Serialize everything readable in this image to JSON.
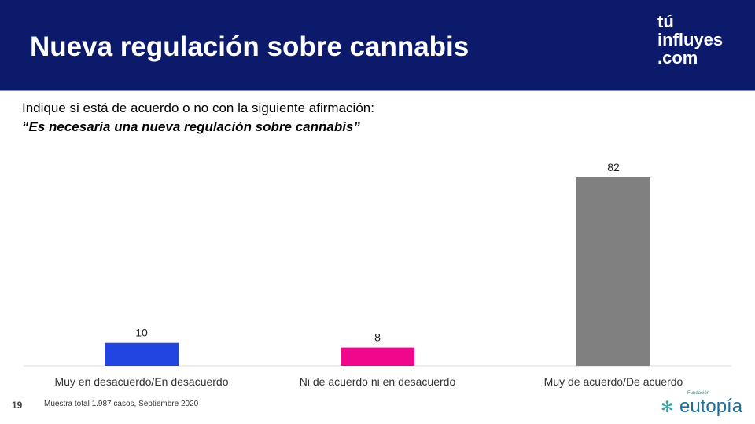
{
  "header": {
    "title": "Nueva regulación sobre cannabis",
    "logo_lines": [
      "tú",
      "influyes",
      ".com"
    ]
  },
  "question": {
    "line1": "Indique si está de acuerdo o no con la siguiente afirmación:",
    "line2": "“Es necesaria una nueva regulación sobre cannabis”"
  },
  "chart_data": {
    "type": "bar",
    "categories": [
      "Muy en desacuerdo/En desacuerdo",
      "Ni de acuerdo ni en desacuerdo",
      "Muy de acuerdo/De acuerdo"
    ],
    "values": [
      10,
      8,
      82
    ],
    "colors": [
      "#2244e0",
      "#f0078c",
      "#808080"
    ],
    "ylim": [
      0,
      82
    ],
    "grid": false
  },
  "footer": {
    "page": "19",
    "note": "Muestra total 1.987 casos, Septiembre 2020",
    "brand_small": "Fundación",
    "brand": "eutopía"
  }
}
